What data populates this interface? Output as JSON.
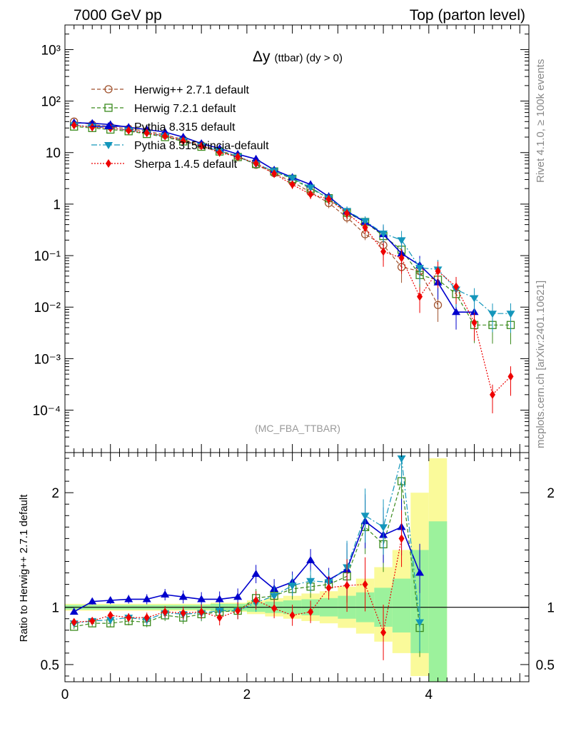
{
  "header": {
    "left": "7000 GeV pp",
    "right": "Top (parton level)"
  },
  "side_text": {
    "rivet": "Rivet 4.1.0, ≥ 100k events",
    "mcplots": "mcplots.cern.ch [arXiv:2401.10621]"
  },
  "colors": {
    "herwig271": "#a0522d",
    "herwig721": "#3a8a1c",
    "pythia": "#0000cd",
    "vincia": "#1496bb",
    "sherpa": "#ee0000",
    "band_inner": "#9cf29c",
    "band_outer": "#fafa9a"
  },
  "chart_data": [
    {
      "type": "line",
      "title": "Δy (ttbar) (dy > 0)",
      "title_main": "Δy",
      "title_rest": "(ttbar) (dy > 0)",
      "watermark": "(MC_FBA_TTBAR)",
      "yscale": "log",
      "xlim": [
        0,
        5.1
      ],
      "ylim": [
        1.5e-05,
        3000
      ],
      "y_tick_labels": [
        "10⁻⁴",
        "10⁻³",
        "10⁻²",
        "10⁻¹",
        "1",
        "10",
        "10²",
        "10³"
      ],
      "legend_position": "top-left",
      "x": [
        0.1,
        0.3,
        0.5,
        0.7,
        0.9,
        1.1,
        1.3,
        1.5,
        1.7,
        1.9,
        2.1,
        2.3,
        2.5,
        2.7,
        2.9,
        3.1,
        3.3,
        3.5,
        3.7,
        3.9,
        4.1,
        4.3,
        4.5,
        4.7,
        4.9
      ],
      "series": [
        {
          "name": "Herwig++ 2.7.1 default",
          "key": "herwig271",
          "marker": "circle-open",
          "dash": "5,3",
          "values": [
            40,
            35,
            32,
            29,
            26,
            22,
            18,
            14,
            11,
            8.5,
            5.8,
            4.0,
            2.7,
            1.7,
            1.05,
            0.55,
            0.26,
            0.16,
            0.06,
            0.05,
            0.011,
            null,
            null,
            null,
            null
          ]
        },
        {
          "name": "Herwig 7.2.1 default",
          "key": "herwig721",
          "marker": "square-open",
          "dash": "5,3",
          "values": [
            32,
            30,
            28,
            26,
            23,
            20,
            16.5,
            13,
            10.5,
            8.2,
            6.0,
            4.3,
            3.1,
            2.0,
            1.3,
            0.68,
            0.45,
            0.24,
            0.13,
            0.042,
            0.034,
            0.018,
            0.0045,
            0.0045,
            0.0045
          ]
        },
        {
          "name": "Pythia 8.315 default",
          "key": "pythia",
          "marker": "triangle-up",
          "dash": "",
          "values": [
            38,
            37,
            35,
            31,
            28,
            25,
            20,
            15,
            12,
            9.3,
            7.5,
            4.6,
            3.3,
            2.4,
            1.4,
            0.72,
            0.45,
            0.26,
            0.11,
            0.065,
            0.03,
            0.008,
            0.008,
            null,
            null
          ]
        },
        {
          "name": "Pythia 8.315-vincia-default",
          "key": "vincia",
          "marker": "triangle-down",
          "dash": "8,3,2,3",
          "values": [
            34,
            32,
            30,
            27,
            24,
            21,
            17,
            13.5,
            10.8,
            8.4,
            6.0,
            4.4,
            3.2,
            2.1,
            1.3,
            0.74,
            0.47,
            0.27,
            0.2,
            0.058,
            0.054,
            0.022,
            0.015,
            0.0075,
            0.0075
          ]
        },
        {
          "name": "Sherpa 1.4.5 default",
          "key": "sherpa",
          "marker": "diamond",
          "dash": "2,2",
          "values": [
            34,
            31,
            30,
            27,
            24,
            21,
            17,
            13.5,
            10,
            8.3,
            6.2,
            3.9,
            2.4,
            1.55,
            1.25,
            0.66,
            0.35,
            0.12,
            0.09,
            0.016,
            0.05,
            0.025,
            0.005,
            0.0002,
            0.00045
          ]
        }
      ]
    },
    {
      "type": "line",
      "ylabel": "Ratio to Herwig++ 2.7.1 default",
      "xlim": [
        0,
        5.1
      ],
      "ylim": [
        0.35,
        2.35
      ],
      "x_tick_labels": [
        "0",
        "2",
        "4"
      ],
      "y_tick_labels": [
        "0.5",
        "1",
        "2"
      ],
      "x": [
        0.1,
        0.3,
        0.5,
        0.7,
        0.9,
        1.1,
        1.3,
        1.5,
        1.7,
        1.9,
        2.1,
        2.3,
        2.5,
        2.7,
        2.9,
        3.1,
        3.3,
        3.5,
        3.7,
        3.9
      ],
      "band_edges": [
        0,
        0.2,
        0.4,
        0.6,
        0.8,
        1.0,
        1.2,
        1.4,
        1.6,
        1.8,
        2.0,
        2.2,
        2.4,
        2.6,
        2.8,
        3.0,
        3.2,
        3.4,
        3.6,
        3.8,
        4.0,
        4.2
      ],
      "band_inner": [
        [
          0.98,
          1.02
        ],
        [
          0.98,
          1.02
        ],
        [
          0.98,
          1.02
        ],
        [
          0.98,
          1.02
        ],
        [
          0.98,
          1.02
        ],
        [
          0.98,
          1.02
        ],
        [
          0.98,
          1.02
        ],
        [
          0.98,
          1.02
        ],
        [
          0.97,
          1.03
        ],
        [
          0.97,
          1.03
        ],
        [
          0.96,
          1.04
        ],
        [
          0.95,
          1.05
        ],
        [
          0.94,
          1.06
        ],
        [
          0.93,
          1.07
        ],
        [
          0.92,
          1.08
        ],
        [
          0.9,
          1.1
        ],
        [
          0.87,
          1.13
        ],
        [
          0.83,
          1.17
        ],
        [
          0.78,
          1.25
        ],
        [
          0.6,
          1.5
        ],
        [
          0.35,
          1.75
        ]
      ],
      "band_outer": [
        [
          0.97,
          1.03
        ],
        [
          0.97,
          1.03
        ],
        [
          0.97,
          1.03
        ],
        [
          0.97,
          1.03
        ],
        [
          0.97,
          1.03
        ],
        [
          0.97,
          1.03
        ],
        [
          0.97,
          1.03
        ],
        [
          0.97,
          1.03
        ],
        [
          0.96,
          1.04
        ],
        [
          0.96,
          1.04
        ],
        [
          0.94,
          1.06
        ],
        [
          0.92,
          1.08
        ],
        [
          0.9,
          1.1
        ],
        [
          0.88,
          1.12
        ],
        [
          0.86,
          1.14
        ],
        [
          0.82,
          1.18
        ],
        [
          0.77,
          1.25
        ],
        [
          0.7,
          1.35
        ],
        [
          0.6,
          1.5
        ],
        [
          0.4,
          2.0
        ],
        [
          0.35,
          2.3
        ]
      ],
      "series": [
        {
          "name": "Herwig 7.2.1 default",
          "key": "herwig721",
          "values": [
            0.83,
            0.86,
            0.86,
            0.88,
            0.87,
            0.93,
            0.91,
            0.94,
            0.96,
            0.97,
            1.08,
            1.1,
            1.16,
            1.18,
            1.2,
            1.27,
            1.7,
            1.55,
            2.1,
            0.82
          ]
        },
        {
          "name": "Pythia 8.315 default",
          "key": "pythia",
          "values": [
            0.96,
            1.05,
            1.06,
            1.07,
            1.07,
            1.11,
            1.09,
            1.07,
            1.07,
            1.09,
            1.29,
            1.16,
            1.22,
            1.41,
            1.24,
            1.33,
            1.75,
            1.63,
            1.7,
            1.3
          ]
        },
        {
          "name": "Pythia 8.315-vincia-default",
          "key": "vincia",
          "values": [
            0.86,
            0.88,
            0.89,
            0.91,
            0.89,
            0.95,
            0.94,
            0.95,
            0.97,
            0.97,
            1.04,
            1.1,
            1.19,
            1.23,
            1.22,
            1.35,
            1.8,
            1.7,
            2.3,
            0.87
          ]
        },
        {
          "name": "Sherpa 1.4.5 default",
          "key": "sherpa",
          "values": [
            0.87,
            0.88,
            0.93,
            0.91,
            0.91,
            0.96,
            0.95,
            0.96,
            0.91,
            0.97,
            1.06,
            0.99,
            0.93,
            0.96,
            1.17,
            1.19,
            1.2,
            0.78,
            1.6,
            null
          ]
        }
      ]
    }
  ]
}
